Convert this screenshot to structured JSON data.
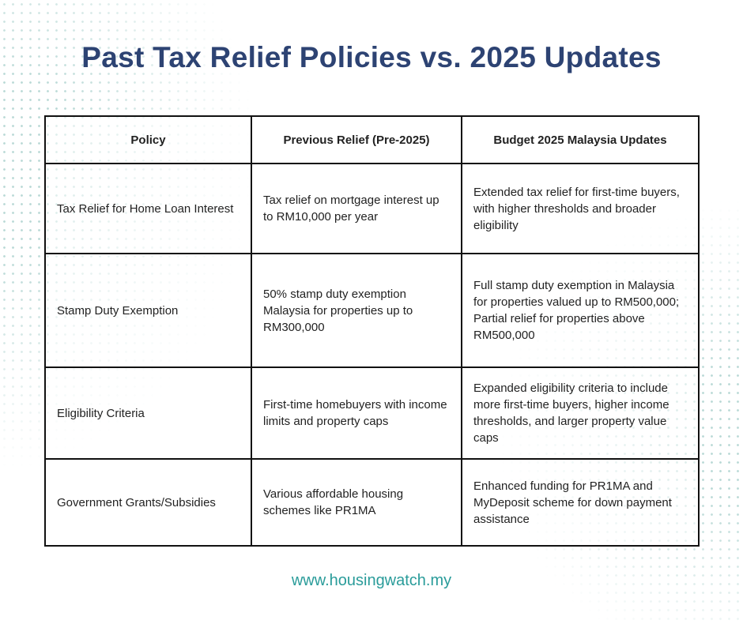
{
  "title": "Past Tax Relief Policies vs. 2025 Updates",
  "table": {
    "headers": [
      "Policy",
      "Previous Relief (Pre-2025)",
      "Budget 2025 Malaysia Updates"
    ],
    "rows": [
      [
        "Tax Relief for Home Loan Interest",
        "Tax relief on mortgage interest up to RM10,000 per year",
        "Extended tax relief for first-time buyers, with higher thresholds and broader eligibility"
      ],
      [
        "Stamp Duty Exemption",
        "50% stamp duty exemption Malaysia for properties up to RM300,000",
        "Full stamp duty exemption in Malaysia for properties valued up to RM500,000; Partial relief for properties above RM500,000"
      ],
      [
        "Eligibility Criteria",
        "First-time homebuyers with income limits and property caps",
        "Expanded eligibility criteria to include more first-time buyers, higher income thresholds, and larger property value caps"
      ],
      [
        "Government Grants/Subsidies",
        "Various affordable housing schemes like PR1MA",
        "Enhanced funding for PR1MA and MyDeposit scheme for down payment assistance"
      ]
    ]
  },
  "footer_url": "www.housingwatch.my",
  "colors": {
    "title": "#2d4373",
    "url": "#2a9c9a",
    "dots": "#b9d9d6"
  }
}
